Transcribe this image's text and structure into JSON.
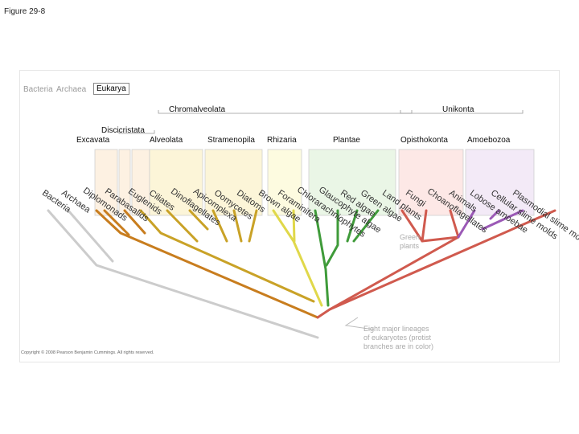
{
  "figure_title": "Figure 29-8",
  "domains": {
    "bacteria": "Bacteria",
    "archaea": "Archaea",
    "eukarya": "Eukarya"
  },
  "supergroups": {
    "chromalveolata": "Chromalveolata",
    "unikonta": "Unikonta",
    "discicristata": "Discicristata",
    "excavata": "Excavata",
    "alveolata": "Alveolata",
    "stramenopila": "Stramenopila",
    "rhizaria": "Rhizaria",
    "plantae": "Plantae",
    "opisthokonta": "Opisthokonta",
    "amoebozoa": "Amoebozoa"
  },
  "taxa": [
    {
      "label": "Bacteria",
      "color": "#555555"
    },
    {
      "label": "Archaea",
      "color": "#555555"
    },
    {
      "label": "Diplomonads",
      "color": "#c87d1e"
    },
    {
      "label": "Parabasalids",
      "color": "#c87d1e"
    },
    {
      "label": "Euglenids",
      "color": "#c87d1e"
    },
    {
      "label": "Ciliates",
      "color": "#c9a227"
    },
    {
      "label": "Dinoflagellates",
      "color": "#c9a227"
    },
    {
      "label": "Apicomplexa",
      "color": "#c9a227"
    },
    {
      "label": "Oomycetes",
      "color": "#c9a227"
    },
    {
      "label": "Diatoms",
      "color": "#c9a227"
    },
    {
      "label": "Brown algae",
      "color": "#c9a227"
    },
    {
      "label": "Foraminifera",
      "color": "#e0d84a"
    },
    {
      "label": "Chlorarachniophytes",
      "color": "#e0d84a"
    },
    {
      "label": "Glaucophyte algae",
      "color": "#3f9b3a"
    },
    {
      "label": "Red algae",
      "color": "#3f9b3a"
    },
    {
      "label": "Green algae",
      "color": "#3f9b3a"
    },
    {
      "label": "Land plants",
      "color": "#3f9b3a"
    },
    {
      "label": "Fungi",
      "color": "#d05a4e"
    },
    {
      "label": "Choanoflagellates",
      "color": "#d05a4e"
    },
    {
      "label": "Animals",
      "color": "#d05a4e"
    },
    {
      "label": "Lobose amoebae",
      "color": "#9b59b6"
    },
    {
      "label": "Cellular slime molds",
      "color": "#9b59b6"
    },
    {
      "label": "Plasmodial slime molds",
      "color": "#9b59b6"
    }
  ],
  "annotations": {
    "green_plants": [
      "Green",
      "plants"
    ],
    "eight_lineages": [
      "Eight major lineages",
      "of eukaryotes (protist",
      "branches are in color)"
    ],
    "copyright": "Copyright © 2008 Pearson Benjamin Cummings. All rights reserved."
  }
}
